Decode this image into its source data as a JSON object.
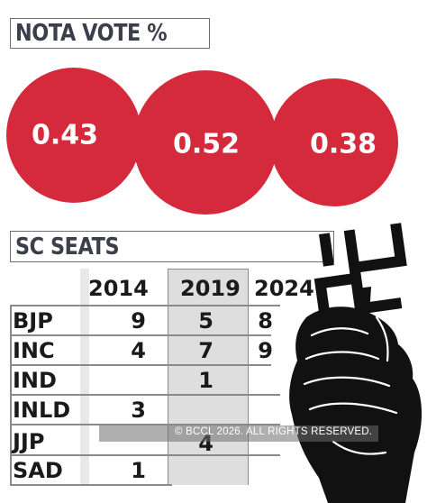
{
  "chart_data": [
    {
      "type": "bubble",
      "title": "NOTA VOTE %",
      "values": [
        "0.43",
        "0.52",
        "0.38"
      ],
      "color": "#d42a3c"
    },
    {
      "type": "table",
      "title": "SC SEATS",
      "columns": [
        "2014",
        "2019",
        "2024"
      ],
      "rows": [
        {
          "party": "BJP",
          "values": [
            "9",
            "5",
            "8"
          ]
        },
        {
          "party": "INC",
          "values": [
            "4",
            "7",
            "9"
          ]
        },
        {
          "party": "IND",
          "values": [
            "",
            "1",
            ""
          ]
        },
        {
          "party": "INLD",
          "values": [
            "3",
            "",
            ""
          ]
        },
        {
          "party": "JJP",
          "values": [
            "",
            "4",
            ""
          ]
        },
        {
          "party": "SAD",
          "values": [
            "1",
            "",
            ""
          ]
        }
      ],
      "highlight_column": "2019"
    }
  ],
  "watermark": "© BCCL 2026. ALL RIGHTS RESERVED.",
  "icons": [
    "swastika-symbol-icon",
    "hand-holding-stamp-icon"
  ]
}
